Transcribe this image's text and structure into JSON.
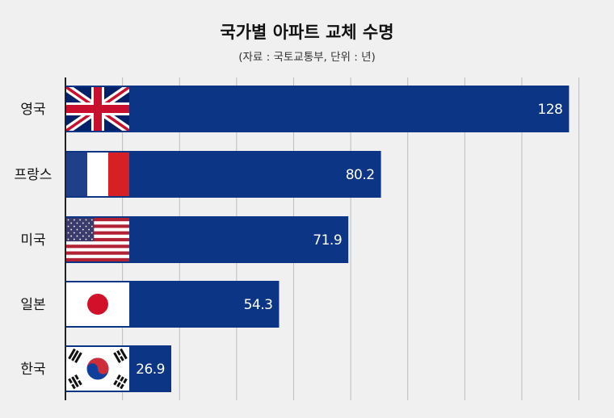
{
  "chart_data": {
    "type": "bar",
    "orientation": "horizontal",
    "title": "국가별 아파트 교체 수명",
    "subtitle": "(자료 : 국토교통부, 단위 : 년)",
    "categories": [
      "영국",
      "프랑스",
      "미국",
      "일본",
      "한국"
    ],
    "values": [
      128,
      80.2,
      71.9,
      54.3,
      26.9
    ],
    "value_labels": [
      "128",
      "80.2",
      "71.9",
      "54.3",
      "26.9"
    ],
    "flags": [
      "uk-flag",
      "france-flag",
      "usa-flag",
      "japan-flag",
      "korea-flag"
    ],
    "xlim": [
      0,
      136
    ],
    "grid": true,
    "grid_step": 14.5,
    "bar_color": "#0c3685",
    "background_color": "#f0f0f0",
    "grid_color": "#bdbdbd"
  }
}
